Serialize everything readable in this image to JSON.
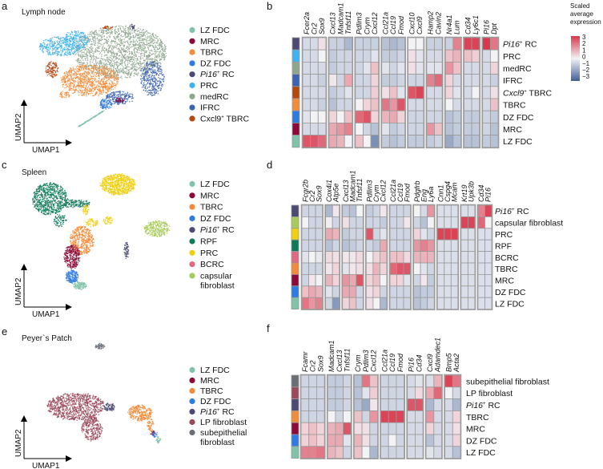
{
  "colors": {
    "LZ FDC": "#7fc4a8",
    "MRC": "#8b0a3a",
    "TBRC": "#f28c3a",
    "DZ FDC": "#2f7be0",
    "Pi16 RC": "#4a4a72",
    "PRC": "#3fb3ee",
    "medRC": "#8fa68e",
    "IFRC": "#3e63b0",
    "Cxcl9 TBRC": "#b5480f",
    "RPF": "#0f7a5a",
    "PRC spleen": "#f0cf0f",
    "BCRC": "#e06a80",
    "capsular fibroblast": "#a8cc5a",
    "LP fibroblast": "#9a4a5a",
    "subepithelial fibroblast": "#6a6e75",
    "scale_low": "#3f5f96",
    "scale_mid": "#f3f3f6",
    "scale_high": "#d9374b"
  },
  "axes": {
    "x": "UMAP1",
    "y": "UMAP2"
  },
  "umap_panels": [
    {
      "letter": "a",
      "title": "Lymph node",
      "legend": [
        {
          "label": "LZ FDC",
          "color_key": "LZ FDC"
        },
        {
          "label": "MRC",
          "color_key": "MRC"
        },
        {
          "label": "TBRC",
          "color_key": "TBRC"
        },
        {
          "label": "DZ FDC",
          "color_key": "DZ FDC"
        },
        {
          "italic": "Pi16",
          "sup": "+",
          "label": " RC",
          "color_key": "Pi16 RC"
        },
        {
          "label": "PRC",
          "color_key": "PRC"
        },
        {
          "label": "medRC",
          "color_key": "medRC"
        },
        {
          "label": "IFRC",
          "color_key": "IFRC"
        },
        {
          "label": "Cxcl9",
          "sup": "+",
          "label2": " TBRC",
          "color_key": "Cxcl9 TBRC"
        }
      ]
    },
    {
      "letter": "c",
      "title": "Spleen",
      "legend": [
        {
          "label": "LZ FDC",
          "color_key": "LZ FDC"
        },
        {
          "label": "MRC",
          "color_key": "MRC"
        },
        {
          "label": "TBRC",
          "color_key": "TBRC"
        },
        {
          "label": "DZ FDC",
          "color_key": "DZ FDC"
        },
        {
          "italic": "Pi16",
          "sup": "+",
          "label": " RC",
          "color_key": "Pi16 RC"
        },
        {
          "label": "RPF",
          "color_key": "RPF"
        },
        {
          "label": "PRC",
          "color_key": "PRC spleen"
        },
        {
          "label": "BCRC",
          "color_key": "BCRC"
        },
        {
          "label": "capsular",
          "label_line2": "fibroblast",
          "color_key": "capsular fibroblast"
        }
      ]
    },
    {
      "letter": "e",
      "title": "Peyer`s Patch",
      "legend": [
        {
          "label": "LZ FDC",
          "color_key": "LZ FDC"
        },
        {
          "label": "MRC",
          "color_key": "MRC"
        },
        {
          "label": "TBRC",
          "color_key": "TBRC"
        },
        {
          "label": "DZ FDC",
          "color_key": "DZ FDC"
        },
        {
          "italic": "Pi16",
          "sup": "+",
          "label": " RC",
          "color_key": "Pi16 RC"
        },
        {
          "label": "LP fibroblast",
          "color_key": "LP fibroblast"
        },
        {
          "label": "subepithelial",
          "label_line2": "fibroblast",
          "color_key": "subepithelial fibroblast"
        }
      ]
    }
  ],
  "colorbar": {
    "title_lines": [
      "Scaled",
      "average",
      "expression"
    ],
    "ticks": [
      "3",
      "2",
      "1",
      "0",
      "−1",
      "−2",
      "−3"
    ],
    "range": [
      -3,
      3
    ]
  },
  "chart_data": [
    {
      "type": "heatmap",
      "panel": "b",
      "gene_groups": [
        [
          "Fcer2a",
          "Cr2",
          "Sox9"
        ],
        [
          "Cxcl13",
          "Madcam1",
          "Tnfsf11"
        ],
        [
          "Pdlim3",
          "Crym",
          "Cxcl12"
        ],
        [
          "Ccl21a",
          "Ccl19",
          "Fmod"
        ],
        [
          "Cxcl10",
          "Cxcl9"
        ],
        [
          "Hamp2",
          "Cavin2"
        ],
        [
          "Nr4a1",
          "Lum"
        ],
        [
          "Cd34",
          "Ly6c1"
        ],
        [
          "Pi16",
          "Dpt"
        ]
      ],
      "rows": [
        {
          "italic": "Pi16",
          "sup": "+",
          "label": " RC",
          "color_key": "Pi16 RC",
          "values": [
            -0.5,
            -0.5,
            0.3,
            -0.7,
            -0.7,
            -1.2,
            -0.7,
            -0.7,
            -0.7,
            -1,
            -1.2,
            -1,
            0,
            0,
            -0.7,
            -0.7,
            -0.7,
            1.8,
            2.8,
            2.8,
            3,
            2
          ]
        },
        {
          "label": "PRC",
          "color_key": "PRC",
          "values": [
            -0.5,
            -0.5,
            0,
            -0.8,
            -0.6,
            -0.6,
            -0.6,
            -0.6,
            -0.3,
            -0.8,
            -0.8,
            -0.6,
            0.3,
            -0.3,
            -0.5,
            -0.5,
            0.8,
            1,
            0.8,
            0.6,
            -0.5,
            0
          ]
        },
        {
          "label": "medRC",
          "color_key": "medRC",
          "values": [
            -0.5,
            -0.5,
            -0.5,
            -0.8,
            -0.6,
            -0.6,
            -0.6,
            -0.3,
            0.8,
            -0.3,
            -0.6,
            -0.3,
            0.3,
            -0.3,
            -0.3,
            -0.3,
            1.5,
            0.8,
            -0.5,
            -0.5,
            -0.5,
            0.5
          ]
        },
        {
          "label": "IFRC",
          "color_key": "IFRC",
          "values": [
            -0.5,
            -0.5,
            -0.7,
            0.2,
            -0.6,
            1.2,
            -0.6,
            -0.6,
            0.5,
            -0.8,
            -0.8,
            -0.6,
            -0.6,
            -0.6,
            1.8,
            2.2,
            0.5,
            -0.5,
            -0.5,
            -0.5,
            -0.5,
            -0.7
          ]
        },
        {
          "italic": "Cxcl9",
          "sup": "+",
          "label": " TBRC",
          "color_key": "Cxcl9 TBRC",
          "values": [
            -0.5,
            -0.5,
            -0.5,
            -0.8,
            -0.6,
            -0.3,
            -0.6,
            -0.6,
            0.6,
            0.3,
            0.8,
            -0.3,
            2.5,
            2.8,
            -0.5,
            -0.5,
            0.5,
            -0.3,
            -0.5,
            0,
            -0.5,
            0.3
          ]
        },
        {
          "label": "TBRC",
          "color_key": "TBRC",
          "values": [
            -0.5,
            -0.5,
            -0.7,
            -1,
            -0.6,
            -0.6,
            0,
            0.5,
            0.8,
            2,
            1.5,
            2.5,
            -0.5,
            -0.5,
            -0.5,
            -0.5,
            0,
            -0.5,
            -0.5,
            -0.5,
            -0.5,
            0.8
          ]
        },
        {
          "label": "DZ FDC",
          "color_key": "DZ FDC",
          "values": [
            -0.3,
            0,
            0,
            0.5,
            0,
            0.8,
            2.2,
            2.5,
            0.5,
            1,
            1.2,
            0.5,
            -0.6,
            -0.6,
            -0.6,
            -0.6,
            -1,
            -0.8,
            -0.8,
            -0.8,
            -0.6,
            -0.8
          ]
        },
        {
          "label": "MRC",
          "color_key": "MRC",
          "values": [
            -0.5,
            -0.5,
            -0.5,
            1.2,
            1.5,
            1.8,
            0,
            -0.6,
            -1,
            -0.3,
            -0.8,
            -0.6,
            -0.6,
            -0.6,
            1.5,
            0.8,
            -1,
            -0.8,
            -0.8,
            -0.8,
            -0.6,
            -1
          ]
        },
        {
          "label": "LZ FDC",
          "color_key": "LZ FDC",
          "values": [
            2.5,
            2.5,
            2.2,
            1.2,
            1,
            0,
            0.8,
            0,
            -2,
            -0.8,
            -1,
            -0.8,
            -0.8,
            -0.8,
            -0.8,
            -0.6,
            -1.5,
            -1,
            -1,
            -1,
            -0.8,
            -1
          ]
        }
      ]
    },
    {
      "type": "heatmap",
      "panel": "d",
      "gene_groups": [
        [
          "Fcgr2b",
          "Cr2",
          "Sox9"
        ],
        [
          "Cox4i1",
          "Atp5e"
        ],
        [
          "Cxcl13",
          "Madcam1",
          "Tnfsf11"
        ],
        [
          "Pdlim3",
          "Crym",
          "Cxcl12"
        ],
        [
          "Ccl21a",
          "Ccl19",
          "Fmod"
        ],
        [
          "Pdgfrb",
          "Eng",
          "Ly6a"
        ],
        [
          "Cnn1",
          "Cspg4",
          "Mcam"
        ],
        [
          "Krt19",
          "Upk3b"
        ],
        [
          "Cd34",
          "Pi16"
        ]
      ],
      "rows": [
        {
          "italic": "Pi16",
          "sup": "+",
          "label": " RC",
          "color_key": "Pi16 RC",
          "values": [
            -0.6,
            -0.6,
            -0.6,
            -1.2,
            0.2,
            -0.8,
            -1,
            0,
            -0.8,
            -0.6,
            0.2,
            -0.6,
            -0.6,
            -0.6,
            0,
            -0.5,
            1.5,
            -0.4,
            -0.4,
            -0.4,
            -0.4,
            -0.4,
            1.8,
            2.8
          ]
        },
        {
          "label": "capsular fibroblast",
          "color_key": "capsular fibroblast",
          "values": [
            0,
            -0.6,
            -0.6,
            0.1,
            -0.6,
            0.3,
            -0.6,
            -0.6,
            -0.6,
            -0.6,
            -0.8,
            -0.6,
            -0.6,
            0.2,
            -0.6,
            -1,
            0,
            -0.4,
            -0.4,
            -0.4,
            2.8,
            2.8,
            2.2,
            0
          ]
        },
        {
          "label": "PRC",
          "color_key": "PRC spleen",
          "values": [
            -0.6,
            -0.6,
            -0.6,
            1.2,
            1,
            -0.8,
            -0.6,
            -0.6,
            2.5,
            -0.6,
            -0.3,
            -0.6,
            -0.6,
            -0.6,
            0.5,
            -0.3,
            -0.6,
            2.8,
            2.8,
            2.8,
            -0.4,
            -0.4,
            -0.4,
            -0.4
          ]
        },
        {
          "label": "RPF",
          "color_key": "RPF",
          "values": [
            -0.6,
            -0.6,
            -0.6,
            -1,
            -0.6,
            -1,
            -0.8,
            -0.6,
            -0.6,
            -0.8,
            1.2,
            -0.6,
            -0.6,
            -0.6,
            1.5,
            1.8,
            1.5,
            -0.4,
            -0.4,
            -0.4,
            -0.4,
            -0.4,
            -0.4,
            -0.4
          ]
        },
        {
          "label": "BCRC",
          "color_key": "BCRC",
          "values": [
            -0.3,
            0,
            -0.2,
            0.4,
            0.3,
            0.2,
            0.2,
            0.4,
            0,
            0.5,
            0.8,
            0.8,
            0.8,
            0.4,
            1,
            1,
            1,
            -0.4,
            -0.4,
            -0.4,
            -0.4,
            -0.4,
            -0.4,
            -0.4
          ]
        },
        {
          "label": "TBRC",
          "color_key": "TBRC",
          "values": [
            -0.6,
            -0.6,
            -0.6,
            0.2,
            0.5,
            -0.3,
            0.2,
            0.3,
            0.3,
            1,
            0.5,
            2.2,
            2.5,
            2.5,
            0,
            -0.3,
            -0.6,
            -0.4,
            -0.4,
            -0.4,
            -0.4,
            -0.4,
            -0.4,
            -0.4
          ]
        },
        {
          "label": "MRC",
          "color_key": "MRC",
          "values": [
            -0.6,
            0.2,
            0,
            1,
            0.5,
            1.5,
            1.2,
            2.5,
            0.5,
            0.8,
            0,
            0.5,
            0.5,
            -0.3,
            -0.6,
            0.2,
            -0.8,
            -0.4,
            -0.4,
            -0.4,
            -0.4,
            -0.4,
            -0.4,
            -0.4
          ]
        },
        {
          "label": "DZ FDC",
          "color_key": "DZ FDC",
          "values": [
            0.8,
            1.2,
            1,
            -0.3,
            -0.6,
            1.2,
            1.2,
            -0.6,
            0.3,
            0.5,
            -0.6,
            -0.6,
            -0.6,
            -0.6,
            -1,
            -0.8,
            -0.8,
            -0.4,
            -0.4,
            -0.4,
            -0.4,
            -0.4,
            -0.4,
            -0.4
          ]
        },
        {
          "label": "LZ FDC",
          "color_key": "LZ FDC",
          "values": [
            2,
            1.5,
            1.8,
            -0.6,
            -1.8,
            0.5,
            0.8,
            -0.6,
            0.3,
            0,
            -1.2,
            -0.6,
            -0.6,
            -0.6,
            -1,
            -0.8,
            -0.6,
            -0.4,
            -0.4,
            -0.4,
            -0.4,
            -0.4,
            -0.4,
            -0.4
          ]
        }
      ]
    },
    {
      "type": "heatmap",
      "panel": "f",
      "gene_groups": [
        [
          "Fcamr",
          "Cr2",
          "Sox9"
        ],
        [
          "Madcam1",
          "Cxcl13",
          "Tnfsf11"
        ],
        [
          "Crym",
          "Pdlim3",
          "Cxcl12"
        ],
        [
          "Ccl21a",
          "Ccl19",
          "Fmod"
        ],
        [
          "Pi16",
          "Cd34"
        ],
        [
          "Cxcl9",
          "Adamdec1"
        ],
        [
          "Bmp5",
          "Acta2"
        ]
      ],
      "rows": [
        {
          "label": "subepithelial fibroblast",
          "color_key": "subepithelial fibroblast",
          "values": [
            -0.6,
            -0.6,
            -0.6,
            -0.8,
            -0.8,
            -0.6,
            -1,
            2,
            0.8,
            -0.6,
            -0.6,
            -0.6,
            -0.5,
            -0.3,
            -0.4,
            1,
            2.8,
            2
          ]
        },
        {
          "label": "LP fibroblast",
          "color_key": "LP fibroblast",
          "values": [
            -0.6,
            -0.6,
            -0.6,
            -0.8,
            -0.8,
            -0.6,
            -1,
            -0.3,
            0.6,
            -0.6,
            -0.6,
            -0.6,
            -0.5,
            0.4,
            1.2,
            2.2,
            0,
            -0.5
          ]
        },
        {
          "italic": "Pi16",
          "sup": "+",
          "label": " RC",
          "color_key": "Pi16 RC",
          "values": [
            -0.6,
            -0.6,
            -0.6,
            -0.8,
            -0.8,
            -0.6,
            -1,
            -1.5,
            0.2,
            -0.6,
            -0.6,
            -0.6,
            2.5,
            2.5,
            -1.2,
            -0.5,
            -0.5,
            -1.2
          ]
        },
        {
          "label": "TBRC",
          "color_key": "TBRC",
          "values": [
            -0.6,
            -0.6,
            -0.6,
            0,
            -0.6,
            0,
            0.8,
            -0.6,
            1.5,
            2.8,
            2.8,
            2.8,
            -0.5,
            -0.5,
            1.5,
            -0.5,
            -0.5,
            0.5
          ]
        },
        {
          "label": "MRC",
          "color_key": "MRC",
          "values": [
            0.5,
            0.8,
            0.5,
            1,
            1.2,
            2.5,
            0.3,
            0.3,
            -0.6,
            -0.6,
            -0.6,
            -0.6,
            -0.5,
            -0.5,
            0.5,
            -0.5,
            -0.5,
            0.3
          ]
        },
        {
          "label": "DZ FDC",
          "color_key": "DZ FDC",
          "values": [
            0.5,
            0.8,
            0.5,
            1.2,
            1.2,
            -0.3,
            1,
            0.3,
            -0.6,
            -0.6,
            0,
            -0.6,
            -0.5,
            -0.5,
            -1,
            -0.5,
            -0.5,
            0.5
          ]
        },
        {
          "label": "LZ FDC",
          "color_key": "LZ FDC",
          "values": [
            1.8,
            1.8,
            2,
            1,
            0.8,
            -0.6,
            0.8,
            0,
            -1.2,
            -0.6,
            -0.6,
            -0.6,
            -0.5,
            -0.5,
            -0.3,
            -0.5,
            -0.5,
            -1
          ]
        }
      ]
    }
  ]
}
